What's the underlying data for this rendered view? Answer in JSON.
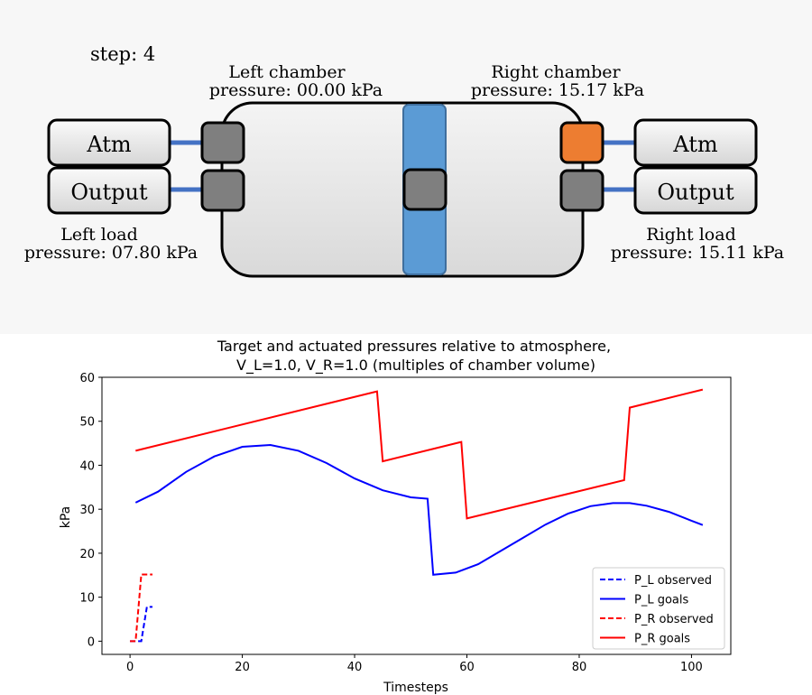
{
  "simulation": {
    "step_label": "step:  4",
    "left_chamber": {
      "title": "Left chamber",
      "pressure_line": "pressure:  00.00 kPa"
    },
    "right_chamber": {
      "title": "Right chamber",
      "pressure_line": "pressure:  15.17 kPa"
    },
    "left_load": {
      "title": "Left load",
      "pressure_line": "pressure:  07.80 kPa"
    },
    "right_load": {
      "title": "Right load",
      "pressure_line": "pressure:  15.11 kPa"
    },
    "buttons": {
      "left_atm": "Atm",
      "left_output": "Output",
      "right_atm": "Atm",
      "right_output": "Output"
    },
    "colors": {
      "piston": "#5b9bd5",
      "valve_closed": "#7f7f7f",
      "valve_open": "#ed7d31",
      "pipe": "#4472c4"
    },
    "valves": {
      "left_atm": "closed",
      "left_output": "closed",
      "right_atm": "open",
      "right_output": "closed",
      "piston": "closed"
    }
  },
  "chart_data": {
    "type": "line",
    "title_line1": "Target and actuated pressures relative to atmosphere,",
    "title_line2": "V_L=1.0,     V_R=1.0 (multiples of chamber volume)",
    "xlabel": "Timesteps",
    "ylabel": "kPa",
    "xlim": [
      -5,
      107
    ],
    "ylim": [
      -3,
      60
    ],
    "xticks": [
      "0",
      "20",
      "40",
      "60",
      "80",
      "100"
    ],
    "yticks": [
      "0",
      "10",
      "20",
      "30",
      "40",
      "50",
      "60"
    ],
    "legend_position": "lower-right",
    "series": [
      {
        "name": "P_L observed",
        "color": "#0000ff",
        "dashed": true,
        "x": [
          0,
          1,
          2,
          3,
          4
        ],
        "y": [
          0,
          0,
          0,
          7.8,
          7.8
        ]
      },
      {
        "name": "P_L goals",
        "color": "#0000ff",
        "dashed": false,
        "x": [
          1,
          5,
          10,
          15,
          20,
          25,
          30,
          35,
          40,
          45,
          50,
          53,
          54,
          58,
          62,
          66,
          70,
          74,
          78,
          82,
          86,
          89,
          92,
          96,
          100,
          102
        ],
        "y": [
          31.5,
          34,
          38.5,
          42,
          44.2,
          44.6,
          43.3,
          40.5,
          37,
          34.3,
          32.7,
          32.4,
          15.1,
          15.6,
          17.5,
          20.5,
          23.5,
          26.5,
          29,
          30.7,
          31.4,
          31.4,
          30.8,
          29.4,
          27.4,
          26.4
        ]
      },
      {
        "name": "P_R observed",
        "color": "#ff0000",
        "dashed": true,
        "x": [
          0,
          1,
          2,
          3,
          4
        ],
        "y": [
          0,
          0,
          15.17,
          15.17,
          15.17
        ]
      },
      {
        "name": "P_R goals",
        "color": "#ff0000",
        "dashed": false,
        "x": [
          1,
          44,
          45,
          59,
          60,
          88,
          89,
          102
        ],
        "y": [
          43.3,
          56.8,
          40.9,
          45.3,
          27.9,
          36.6,
          53.1,
          57.2
        ]
      }
    ]
  }
}
